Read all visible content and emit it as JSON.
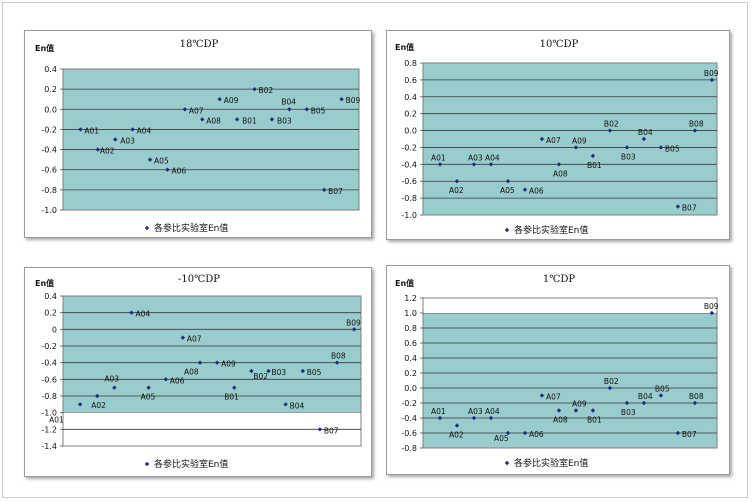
{
  "chart_data": [
    {
      "type": "scatter",
      "title": "18℃DP",
      "ylabel": "En值",
      "legend": "各参比实验室En值",
      "legend_position": "bottom",
      "ylim": [
        -1.0,
        0.4
      ],
      "yticks": [
        0.4,
        0.2,
        0.0,
        -0.2,
        -0.4,
        -0.6,
        -0.8,
        -1.0
      ],
      "ytick_labels": [
        "0.4",
        "0.2",
        "0.0",
        "-0.2",
        "-0.4",
        "-0.6",
        "-0.8",
        "-1.0"
      ],
      "grid": true,
      "plot_color": "#99cccc",
      "point_color": "#1f2d7a",
      "points": [
        {
          "label": "A01",
          "x": 1,
          "y": -0.2
        },
        {
          "label": "A02",
          "x": 2,
          "y": -0.4
        },
        {
          "label": "A03",
          "x": 3,
          "y": -0.3
        },
        {
          "label": "A04",
          "x": 4,
          "y": -0.2
        },
        {
          "label": "A05",
          "x": 5,
          "y": -0.5
        },
        {
          "label": "A06",
          "x": 6,
          "y": -0.6
        },
        {
          "label": "A07",
          "x": 7,
          "y": 0.0
        },
        {
          "label": "A08",
          "x": 8,
          "y": -0.1
        },
        {
          "label": "A09",
          "x": 9,
          "y": 0.1
        },
        {
          "label": "B01",
          "x": 10,
          "y": -0.1
        },
        {
          "label": "B02",
          "x": 11,
          "y": 0.2
        },
        {
          "label": "B03",
          "x": 12,
          "y": -0.1
        },
        {
          "label": "B04",
          "x": 13,
          "y": 0.0
        },
        {
          "label": "B05",
          "x": 14,
          "y": 0.0
        },
        {
          "label": "B07",
          "x": 15,
          "y": -0.8
        },
        {
          "label": "B09",
          "x": 16,
          "y": 0.1
        }
      ]
    },
    {
      "type": "scatter",
      "title": "10℃DP",
      "ylabel": "En值",
      "legend": "各参比实验室En值",
      "legend_position": "bottom",
      "ylim": [
        -1.0,
        0.8
      ],
      "yticks": [
        0.8,
        0.6,
        0.4,
        0.2,
        0.0,
        -0.2,
        -0.4,
        -0.6,
        -0.8,
        -1.0
      ],
      "ytick_labels": [
        "0.8",
        "0.6",
        "0.4",
        "0.2",
        "0.0",
        "-0.2",
        "-0.4",
        "-0.6",
        "-0.8",
        "-1.0"
      ],
      "grid": true,
      "plot_color": "#99cccc",
      "point_color": "#1f2d7a",
      "points": [
        {
          "label": "A01",
          "x": 1,
          "y": -0.4
        },
        {
          "label": "A02",
          "x": 2,
          "y": -0.6
        },
        {
          "label": "A03",
          "x": 3,
          "y": -0.4
        },
        {
          "label": "A04",
          "x": 4,
          "y": -0.4
        },
        {
          "label": "A05",
          "x": 5,
          "y": -0.6
        },
        {
          "label": "A06",
          "x": 6,
          "y": -0.7
        },
        {
          "label": "A07",
          "x": 7,
          "y": -0.1
        },
        {
          "label": "A08",
          "x": 8,
          "y": -0.4
        },
        {
          "label": "A09",
          "x": 9,
          "y": -0.2
        },
        {
          "label": "B01",
          "x": 10,
          "y": -0.3
        },
        {
          "label": "B02",
          "x": 11,
          "y": 0.0
        },
        {
          "label": "B03",
          "x": 12,
          "y": -0.2
        },
        {
          "label": "B04",
          "x": 13,
          "y": -0.1
        },
        {
          "label": "B05",
          "x": 14,
          "y": -0.2
        },
        {
          "label": "B07",
          "x": 15,
          "y": -0.9
        },
        {
          "label": "B08",
          "x": 16,
          "y": 0.0
        },
        {
          "label": "B09",
          "x": 17,
          "y": 0.6
        }
      ]
    },
    {
      "type": "scatter",
      "title": "-10℃DP",
      "ylabel": "En值",
      "legend": "各参比实验室En值",
      "legend_position": "bottom",
      "ylim": [
        -1.4,
        0.4
      ],
      "yticks": [
        0.4,
        0.2,
        0.0,
        -0.2,
        -0.4,
        -0.6,
        -0.8,
        -1.0,
        -1.2,
        -1.4
      ],
      "ytick_labels": [
        "0.4",
        "0.2",
        "0",
        "-0.2",
        "-0.4",
        "-0.6",
        "-0.8",
        "-1.0",
        "-1.2",
        "-1.4"
      ],
      "grid": true,
      "plot_color": "#99cccc",
      "point_color": "#1f2d7a",
      "points": [
        {
          "label": "A01",
          "x": 1,
          "y": -0.9
        },
        {
          "label": "A02",
          "x": 2,
          "y": -0.8
        },
        {
          "label": "A03",
          "x": 3,
          "y": -0.7
        },
        {
          "label": "A04",
          "x": 4,
          "y": 0.2
        },
        {
          "label": "A05",
          "x": 5,
          "y": -0.7
        },
        {
          "label": "A06",
          "x": 6,
          "y": -0.6
        },
        {
          "label": "A07",
          "x": 7,
          "y": -0.1
        },
        {
          "label": "A08",
          "x": 8,
          "y": -0.4
        },
        {
          "label": "A09",
          "x": 9,
          "y": -0.4
        },
        {
          "label": "B01",
          "x": 10,
          "y": -0.7
        },
        {
          "label": "B02",
          "x": 11,
          "y": -0.5
        },
        {
          "label": "B03",
          "x": 12,
          "y": -0.5
        },
        {
          "label": "B04",
          "x": 13,
          "y": -0.9
        },
        {
          "label": "B05",
          "x": 14,
          "y": -0.5
        },
        {
          "label": "B07",
          "x": 15,
          "y": -1.2
        },
        {
          "label": "B08",
          "x": 16,
          "y": -0.4
        },
        {
          "label": "B09",
          "x": 17,
          "y": 0.0
        }
      ]
    },
    {
      "type": "scatter",
      "title": "1℃DP",
      "ylabel": "En值",
      "legend": "各参比实验室En值",
      "legend_position": "bottom",
      "ylim": [
        -0.8,
        1.2
      ],
      "yticks": [
        1.2,
        1.0,
        0.8,
        0.6,
        0.4,
        0.2,
        0.0,
        -0.2,
        -0.4,
        -0.6,
        -0.8
      ],
      "ytick_labels": [
        "1.2",
        "1.0",
        "0.8",
        "0.6",
        "0.4",
        "0.2",
        "0.0",
        "-0.2",
        "-0.4",
        "-0.6",
        "-0.8"
      ],
      "grid": true,
      "plot_color": "#99cccc",
      "point_color": "#1f2d7a",
      "points": [
        {
          "label": "A01",
          "x": 1,
          "y": -0.4
        },
        {
          "label": "A02",
          "x": 2,
          "y": -0.5
        },
        {
          "label": "A03",
          "x": 3,
          "y": -0.4
        },
        {
          "label": "A04",
          "x": 4,
          "y": -0.4
        },
        {
          "label": "A05",
          "x": 5,
          "y": -0.6
        },
        {
          "label": "A06",
          "x": 6,
          "y": -0.6
        },
        {
          "label": "A07",
          "x": 7,
          "y": -0.1
        },
        {
          "label": "A08",
          "x": 8,
          "y": -0.3
        },
        {
          "label": "A09",
          "x": 9,
          "y": -0.3
        },
        {
          "label": "B01",
          "x": 10,
          "y": -0.3
        },
        {
          "label": "B02",
          "x": 11,
          "y": 0.0
        },
        {
          "label": "B03",
          "x": 12,
          "y": -0.2
        },
        {
          "label": "B04",
          "x": 13,
          "y": -0.2
        },
        {
          "label": "B05",
          "x": 14,
          "y": -0.1
        },
        {
          "label": "B07",
          "x": 15,
          "y": -0.6
        },
        {
          "label": "B08",
          "x": 16,
          "y": -0.2
        },
        {
          "label": "B09",
          "x": 17,
          "y": 1.0
        }
      ]
    }
  ]
}
